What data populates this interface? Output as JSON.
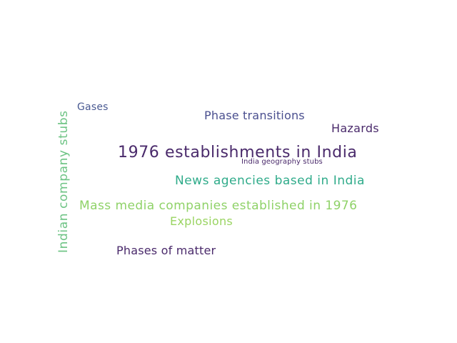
{
  "words": [
    {
      "text": "1976 establishments in India",
      "color": "#4a2a6b"
    },
    {
      "text": "Indian company stubs",
      "color": "#6cc383"
    },
    {
      "text": "News agencies based in India",
      "color": "#2fab8a"
    },
    {
      "text": "Mass media companies established in 1976",
      "color": "#8fd268"
    },
    {
      "text": "Phase transitions",
      "color": "#4a4f8f"
    },
    {
      "text": "Phases of matter",
      "color": "#4a2a6b"
    },
    {
      "text": "Hazards",
      "color": "#4a2a6b"
    },
    {
      "text": "Explosions",
      "color": "#9ad462"
    },
    {
      "text": "Gases",
      "color": "#4a5a92"
    },
    {
      "text": "India geography stubs",
      "color": "#4a2a6b"
    }
  ]
}
